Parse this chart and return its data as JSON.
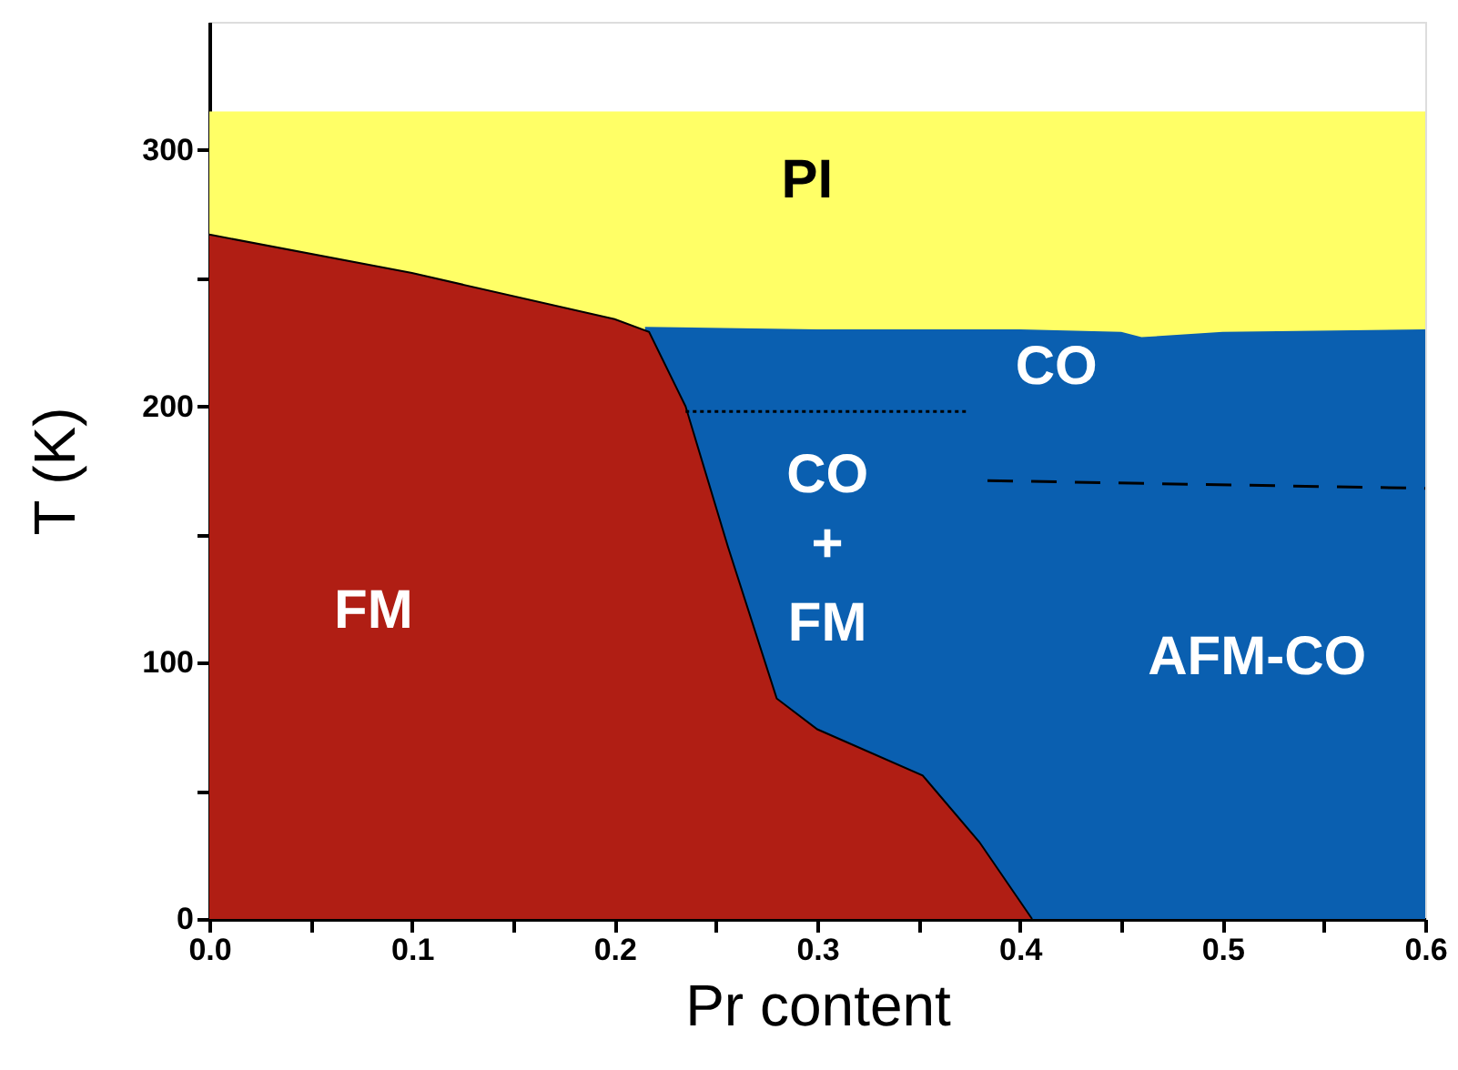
{
  "chart_data": {
    "type": "area",
    "xlabel": "Pr content",
    "ylabel": "T (K)",
    "xlim": [
      0,
      0.6
    ],
    "ylim": [
      0,
      350
    ],
    "xticks": [
      {
        "value": 0,
        "label": "0.0"
      },
      {
        "value": 0.05,
        "label": null
      },
      0.1,
      {
        "value": 0.15,
        "label": null
      },
      0.2,
      {
        "value": 0.25,
        "label": null
      },
      0.3,
      {
        "value": 0.35,
        "label": null
      },
      0.4,
      {
        "value": 0.45,
        "label": null
      },
      0.5,
      {
        "value": 0.55,
        "label": null
      },
      0.6
    ],
    "yticks": [
      0,
      {
        "value": 50,
        "label": null
      },
      100,
      {
        "value": 150,
        "label": null
      },
      200,
      {
        "value": 250,
        "label": null
      },
      300
    ],
    "grid": false,
    "series": [
      {
        "color": "#ffff66",
        "x": [
          0,
          0.6
        ],
        "values": [
          315,
          315
        ]
      },
      {
        "color": "#0a5fb0",
        "x": [
          0.215,
          0.3,
          0.4,
          0.45,
          0.46,
          0.5,
          0.6
        ],
        "values": [
          231,
          230,
          230,
          229,
          227,
          229,
          230
        ]
      },
      {
        "color": "#b01e14",
        "x": [
          0,
          0.1,
          0.2,
          0.217,
          0.235,
          0.256,
          0.28,
          0.3,
          0.352,
          0.38,
          0.406
        ],
        "values": [
          267,
          252,
          234,
          229,
          200,
          145,
          86,
          74,
          56,
          30,
          0
        ]
      },
      {
        "type": "line",
        "color": "#000000",
        "line_style": "dotted",
        "x": [
          0.235,
          0.375
        ],
        "values": [
          198,
          198
        ]
      },
      {
        "type": "line",
        "color": "#000000",
        "line_style": "dashed",
        "x": [
          0.384,
          0.6
        ],
        "values": [
          171,
          168
        ]
      }
    ],
    "annotations": [
      "PI",
      "CO",
      "CO",
      "+",
      "FM",
      "FM",
      "AFM-CO"
    ]
  }
}
